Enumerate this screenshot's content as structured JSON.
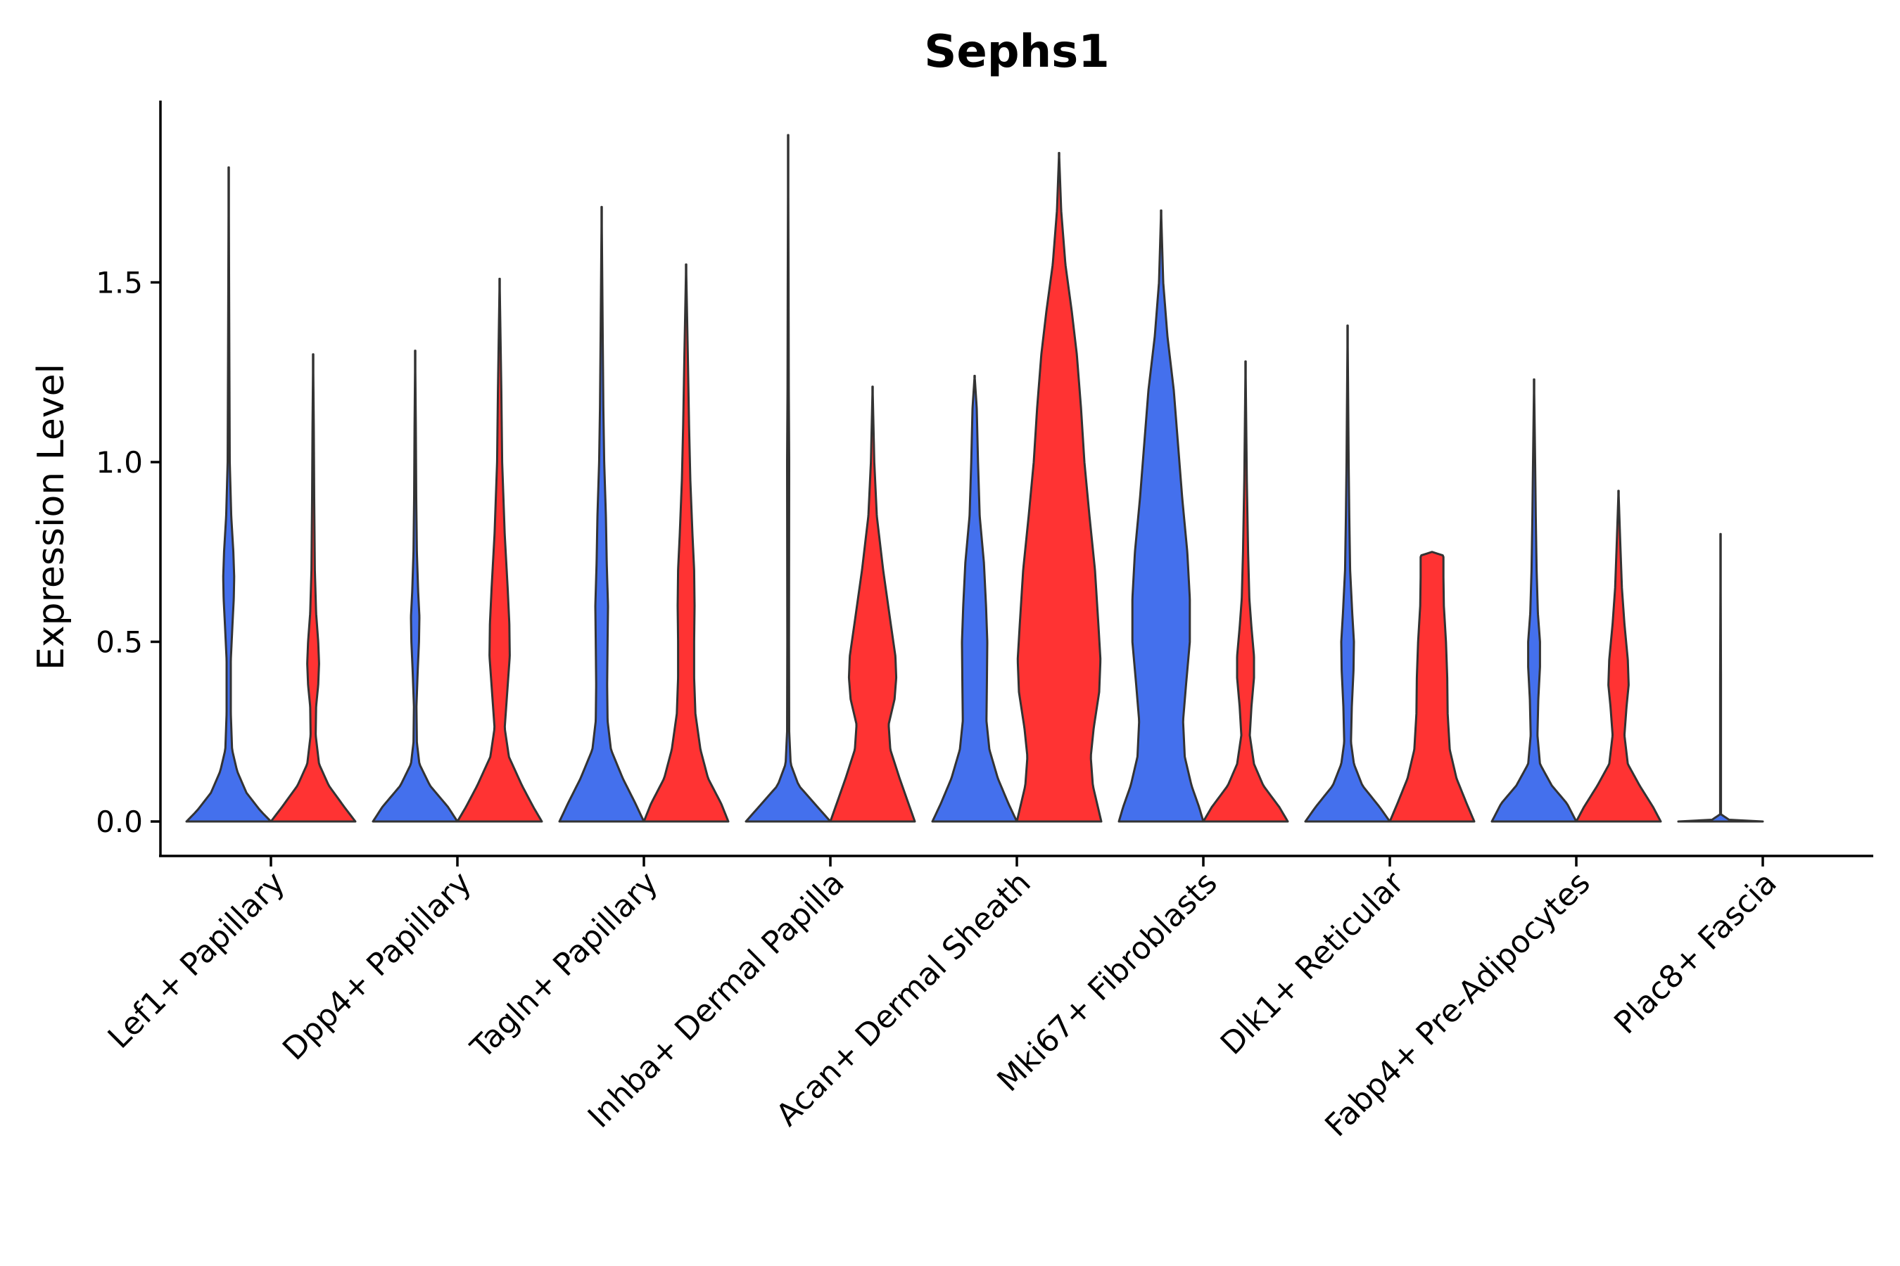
{
  "chart_data": {
    "type": "violin",
    "title": "Sephs1",
    "xlabel": "",
    "ylabel": "Expression Level",
    "ylim": [
      -0.1,
      2.0
    ],
    "yticks": [
      0.0,
      0.5,
      1.0,
      1.5
    ],
    "ytick_labels": [
      "0.0",
      "0.5",
      "1.0",
      "1.5"
    ],
    "grid": false,
    "legend": "none",
    "colors": {
      "series_a": "#4470ED",
      "series_b": "#FF3333",
      "outline": "#333333",
      "axis": "#000000"
    },
    "categories": [
      "Lef1+ Papillary",
      "Dpp4+ Papillary",
      "Tagln+ Papillary",
      "Inhba+ Dermal Papilla",
      "Acan+ Dermal Sheath",
      "Mki67+ Fibroblasts",
      "Dlk1+ Reticular",
      "Fabp4+ Pre-Adipocytes",
      "Plac8+ Fascia"
    ],
    "series": [
      {
        "name": "blue",
        "color": "#4470ED",
        "violins": [
          {
            "max": 1.82,
            "profile": [
              [
                0,
                1.0
              ],
              [
                0.03,
                0.75
              ],
              [
                0.08,
                0.42
              ],
              [
                0.14,
                0.2
              ],
              [
                0.2,
                0.08
              ],
              [
                0.3,
                0.05
              ],
              [
                0.45,
                0.05
              ],
              [
                0.55,
                0.09
              ],
              [
                0.62,
                0.12
              ],
              [
                0.68,
                0.13
              ],
              [
                0.75,
                0.11
              ],
              [
                0.85,
                0.06
              ],
              [
                1.0,
                0.025
              ],
              [
                1.3,
                0.015
              ],
              [
                1.82,
                0.0
              ]
            ]
          },
          {
            "max": 1.31,
            "profile": [
              [
                0,
                1.0
              ],
              [
                0.04,
                0.78
              ],
              [
                0.1,
                0.35
              ],
              [
                0.16,
                0.1
              ],
              [
                0.22,
                0.04
              ],
              [
                0.32,
                0.03
              ],
              [
                0.42,
                0.06
              ],
              [
                0.5,
                0.09
              ],
              [
                0.57,
                0.1
              ],
              [
                0.64,
                0.07
              ],
              [
                0.75,
                0.04
              ],
              [
                0.9,
                0.025
              ],
              [
                1.1,
                0.015
              ],
              [
                1.31,
                0.0
              ]
            ]
          },
          {
            "max": 1.71,
            "profile": [
              [
                0,
                1.0
              ],
              [
                0.05,
                0.8
              ],
              [
                0.12,
                0.5
              ],
              [
                0.2,
                0.22
              ],
              [
                0.28,
                0.14
              ],
              [
                0.38,
                0.13
              ],
              [
                0.5,
                0.14
              ],
              [
                0.6,
                0.15
              ],
              [
                0.72,
                0.12
              ],
              [
                0.85,
                0.1
              ],
              [
                1.0,
                0.06
              ],
              [
                1.15,
                0.04
              ],
              [
                1.35,
                0.025
              ],
              [
                1.71,
                0.0
              ]
            ]
          },
          {
            "max": 1.91,
            "profile": [
              [
                0,
                1.0
              ],
              [
                0.04,
                0.7
              ],
              [
                0.1,
                0.25
              ],
              [
                0.16,
                0.06
              ],
              [
                0.25,
                0.025
              ],
              [
                0.5,
                0.02
              ],
              [
                1.0,
                0.025
              ],
              [
                1.2,
                0.015
              ],
              [
                1.5,
                0.01
              ],
              [
                1.91,
                0.0
              ]
            ]
          },
          {
            "max": 1.24,
            "profile": [
              [
                0,
                1.0
              ],
              [
                0.05,
                0.8
              ],
              [
                0.12,
                0.55
              ],
              [
                0.2,
                0.35
              ],
              [
                0.28,
                0.28
              ],
              [
                0.38,
                0.29
              ],
              [
                0.5,
                0.3
              ],
              [
                0.6,
                0.27
              ],
              [
                0.72,
                0.22
              ],
              [
                0.85,
                0.12
              ],
              [
                1.0,
                0.08
              ],
              [
                1.15,
                0.05
              ],
              [
                1.24,
                0.0
              ]
            ]
          },
          {
            "max": 1.7,
            "profile": [
              [
                0,
                1.0
              ],
              [
                0.04,
                0.9
              ],
              [
                0.1,
                0.72
              ],
              [
                0.18,
                0.56
              ],
              [
                0.28,
                0.52
              ],
              [
                0.38,
                0.59
              ],
              [
                0.5,
                0.68
              ],
              [
                0.62,
                0.68
              ],
              [
                0.75,
                0.62
              ],
              [
                0.9,
                0.5
              ],
              [
                1.05,
                0.4
              ],
              [
                1.2,
                0.3
              ],
              [
                1.35,
                0.15
              ],
              [
                1.5,
                0.05
              ],
              [
                1.7,
                0.0
              ]
            ]
          },
          {
            "max": 1.38,
            "profile": [
              [
                0,
                1.0
              ],
              [
                0.04,
                0.76
              ],
              [
                0.1,
                0.35
              ],
              [
                0.16,
                0.15
              ],
              [
                0.22,
                0.08
              ],
              [
                0.32,
                0.1
              ],
              [
                0.42,
                0.14
              ],
              [
                0.5,
                0.15
              ],
              [
                0.58,
                0.11
              ],
              [
                0.7,
                0.06
              ],
              [
                0.85,
                0.04
              ],
              [
                1.0,
                0.025
              ],
              [
                1.38,
                0.0
              ]
            ]
          },
          {
            "max": 1.23,
            "profile": [
              [
                0,
                1.0
              ],
              [
                0.05,
                0.78
              ],
              [
                0.1,
                0.42
              ],
              [
                0.16,
                0.14
              ],
              [
                0.24,
                0.08
              ],
              [
                0.34,
                0.1
              ],
              [
                0.43,
                0.14
              ],
              [
                0.5,
                0.14
              ],
              [
                0.58,
                0.09
              ],
              [
                0.7,
                0.06
              ],
              [
                0.85,
                0.04
              ],
              [
                1.0,
                0.025
              ],
              [
                1.23,
                0.0
              ]
            ]
          },
          {
            "max": 0.8,
            "profile": [
              [
                0,
                1.0
              ],
              [
                0.005,
                0.2
              ],
              [
                0.02,
                0.01
              ],
              [
                0.4,
                0.01
              ],
              [
                0.8,
                0.0
              ]
            ]
          }
        ]
      },
      {
        "name": "red",
        "color": "#FF3333",
        "violins": [
          {
            "max": 1.3,
            "profile": [
              [
                0,
                1.0
              ],
              [
                0.04,
                0.74
              ],
              [
                0.1,
                0.37
              ],
              [
                0.16,
                0.14
              ],
              [
                0.24,
                0.06
              ],
              [
                0.32,
                0.07
              ],
              [
                0.38,
                0.12
              ],
              [
                0.44,
                0.14
              ],
              [
                0.5,
                0.12
              ],
              [
                0.58,
                0.07
              ],
              [
                0.7,
                0.04
              ],
              [
                0.9,
                0.025
              ],
              [
                1.1,
                0.015
              ],
              [
                1.3,
                0.0
              ]
            ]
          },
          {
            "max": 1.51,
            "profile": [
              [
                0,
                1.0
              ],
              [
                0.04,
                0.8
              ],
              [
                0.1,
                0.53
              ],
              [
                0.18,
                0.22
              ],
              [
                0.26,
                0.12
              ],
              [
                0.36,
                0.18
              ],
              [
                0.46,
                0.24
              ],
              [
                0.55,
                0.23
              ],
              [
                0.65,
                0.19
              ],
              [
                0.8,
                0.12
              ],
              [
                1.0,
                0.06
              ],
              [
                1.2,
                0.04
              ],
              [
                1.51,
                0.0
              ]
            ]
          },
          {
            "max": 1.55,
            "profile": [
              [
                0,
                1.0
              ],
              [
                0.05,
                0.83
              ],
              [
                0.12,
                0.52
              ],
              [
                0.2,
                0.34
              ],
              [
                0.3,
                0.22
              ],
              [
                0.4,
                0.19
              ],
              [
                0.5,
                0.19
              ],
              [
                0.6,
                0.2
              ],
              [
                0.7,
                0.19
              ],
              [
                0.8,
                0.15
              ],
              [
                0.95,
                0.1
              ],
              [
                1.1,
                0.07
              ],
              [
                1.3,
                0.04
              ],
              [
                1.55,
                0.0
              ]
            ]
          },
          {
            "max": 1.21,
            "profile": [
              [
                0,
                1.0
              ],
              [
                0.05,
                0.85
              ],
              [
                0.12,
                0.64
              ],
              [
                0.2,
                0.42
              ],
              [
                0.27,
                0.38
              ],
              [
                0.34,
                0.52
              ],
              [
                0.4,
                0.56
              ],
              [
                0.46,
                0.54
              ],
              [
                0.55,
                0.43
              ],
              [
                0.7,
                0.25
              ],
              [
                0.85,
                0.1
              ],
              [
                1.0,
                0.04
              ],
              [
                1.21,
                0.0
              ]
            ]
          },
          {
            "max": 1.86,
            "profile": [
              [
                0,
                1.0
              ],
              [
                0.04,
                0.92
              ],
              [
                0.1,
                0.8
              ],
              [
                0.18,
                0.75
              ],
              [
                0.26,
                0.82
              ],
              [
                0.36,
                0.95
              ],
              [
                0.45,
                0.98
              ],
              [
                0.55,
                0.93
              ],
              [
                0.7,
                0.85
              ],
              [
                0.85,
                0.72
              ],
              [
                1.0,
                0.6
              ],
              [
                1.15,
                0.52
              ],
              [
                1.3,
                0.42
              ],
              [
                1.42,
                0.3
              ],
              [
                1.55,
                0.15
              ],
              [
                1.7,
                0.05
              ],
              [
                1.86,
                0.0
              ]
            ]
          },
          {
            "max": 1.28,
            "profile": [
              [
                0,
                1.0
              ],
              [
                0.04,
                0.8
              ],
              [
                0.1,
                0.42
              ],
              [
                0.16,
                0.2
              ],
              [
                0.24,
                0.1
              ],
              [
                0.32,
                0.14
              ],
              [
                0.4,
                0.2
              ],
              [
                0.46,
                0.2
              ],
              [
                0.54,
                0.14
              ],
              [
                0.62,
                0.09
              ],
              [
                0.75,
                0.06
              ],
              [
                0.95,
                0.03
              ],
              [
                1.28,
                0.0
              ]
            ]
          },
          {
            "max": 0.75,
            "profile": [
              [
                0,
                1.0
              ],
              [
                0.05,
                0.82
              ],
              [
                0.12,
                0.58
              ],
              [
                0.2,
                0.42
              ],
              [
                0.3,
                0.37
              ],
              [
                0.4,
                0.36
              ],
              [
                0.5,
                0.33
              ],
              [
                0.6,
                0.28
              ],
              [
                0.68,
                0.27
              ],
              [
                0.74,
                0.27
              ],
              [
                0.75,
                0.0
              ]
            ]
          },
          {
            "max": 0.92,
            "profile": [
              [
                0,
                1.0
              ],
              [
                0.04,
                0.82
              ],
              [
                0.1,
                0.5
              ],
              [
                0.16,
                0.22
              ],
              [
                0.24,
                0.14
              ],
              [
                0.32,
                0.19
              ],
              [
                0.38,
                0.24
              ],
              [
                0.45,
                0.22
              ],
              [
                0.55,
                0.14
              ],
              [
                0.65,
                0.08
              ],
              [
                0.78,
                0.04
              ],
              [
                0.92,
                0.0
              ]
            ]
          }
        ]
      }
    ]
  }
}
